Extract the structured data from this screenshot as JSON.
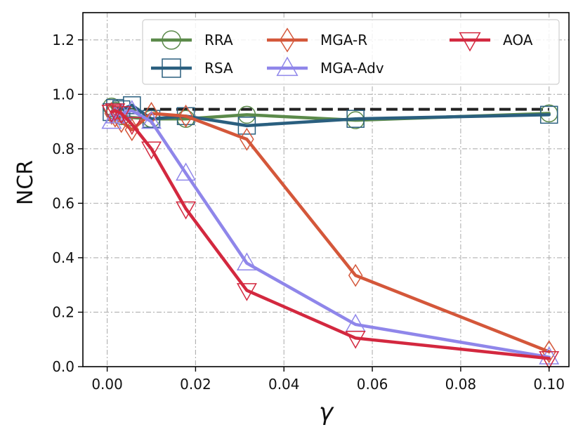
{
  "chart_data": {
    "type": "line",
    "xlabel": "γ",
    "ylabel": "NCR",
    "xlim": [
      -0.0055,
      0.1045
    ],
    "ylim": [
      0.0,
      1.3
    ],
    "xticks": [
      0.0,
      0.02,
      0.04,
      0.06,
      0.08,
      0.1
    ],
    "xtick_labels": [
      "0.00",
      "0.02",
      "0.04",
      "0.06",
      "0.08",
      "0.10"
    ],
    "yticks": [
      0.0,
      0.2,
      0.4,
      0.6,
      0.8,
      1.0,
      1.2
    ],
    "ytick_labels": [
      "0.0",
      "0.2",
      "0.4",
      "0.6",
      "0.8",
      "1.0",
      "1.2"
    ],
    "grid": true,
    "legend_position": "top",
    "reference_line": {
      "y": 0.945,
      "style": "dashed",
      "color": "#222222"
    },
    "series": [
      {
        "name": "RRA",
        "color": "#5b8a4a",
        "marker": "circle",
        "x": [
          0.001,
          0.0018,
          0.0032,
          0.0056,
          0.01,
          0.0178,
          0.0316,
          0.0562,
          0.1
        ],
        "y": [
          0.955,
          0.94,
          0.92,
          0.915,
          0.91,
          0.91,
          0.925,
          0.905,
          0.93
        ]
      },
      {
        "name": "RSA",
        "color": "#2a5f7f",
        "marker": "square",
        "x": [
          0.001,
          0.0018,
          0.0032,
          0.0056,
          0.01,
          0.0178,
          0.0316,
          0.0562,
          0.1
        ],
        "y": [
          0.935,
          0.95,
          0.945,
          0.96,
          0.91,
          0.92,
          0.885,
          0.91,
          0.925
        ]
      },
      {
        "name": "MGA-R",
        "color": "#d4573a",
        "marker": "diamond",
        "x": [
          0.001,
          0.0018,
          0.0032,
          0.0056,
          0.01,
          0.0178,
          0.0316,
          0.0562,
          0.1
        ],
        "y": [
          0.93,
          0.92,
          0.9,
          0.87,
          0.93,
          0.92,
          0.835,
          0.335,
          0.055
        ]
      },
      {
        "name": "MGA-Adv",
        "color": "#8f86ea",
        "marker": "triangle-up",
        "x": [
          0.001,
          0.0018,
          0.0032,
          0.0056,
          0.01,
          0.0178,
          0.0316,
          0.0562,
          0.1
        ],
        "y": [
          0.9,
          0.92,
          0.93,
          0.94,
          0.9,
          0.71,
          0.38,
          0.155,
          0.035
        ]
      },
      {
        "name": "AOA",
        "color": "#d3283f",
        "marker": "triangle-down",
        "x": [
          0.001,
          0.0018,
          0.0032,
          0.0056,
          0.01,
          0.0178,
          0.0316,
          0.0562,
          0.1
        ],
        "y": [
          0.935,
          0.94,
          0.93,
          0.89,
          0.8,
          0.58,
          0.28,
          0.105,
          0.03
        ]
      }
    ]
  }
}
